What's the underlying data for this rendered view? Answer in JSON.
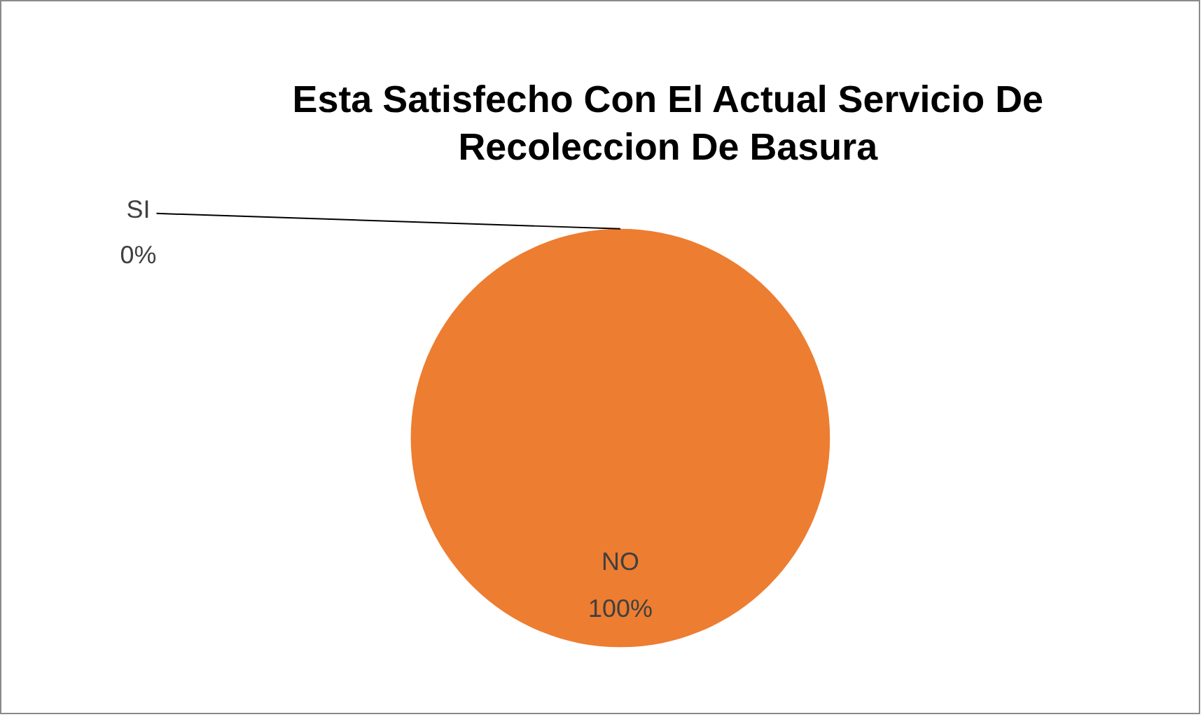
{
  "chart_data": {
    "type": "pie",
    "title": "Esta Satisfecho Con El Actual Servicio De Recoleccion De Basura",
    "categories": [
      "SI",
      "NO"
    ],
    "values": [
      0,
      100
    ],
    "colors": [
      "#4472c4",
      "#ed7d31"
    ],
    "value_labels": [
      "0%",
      "100%"
    ]
  }
}
